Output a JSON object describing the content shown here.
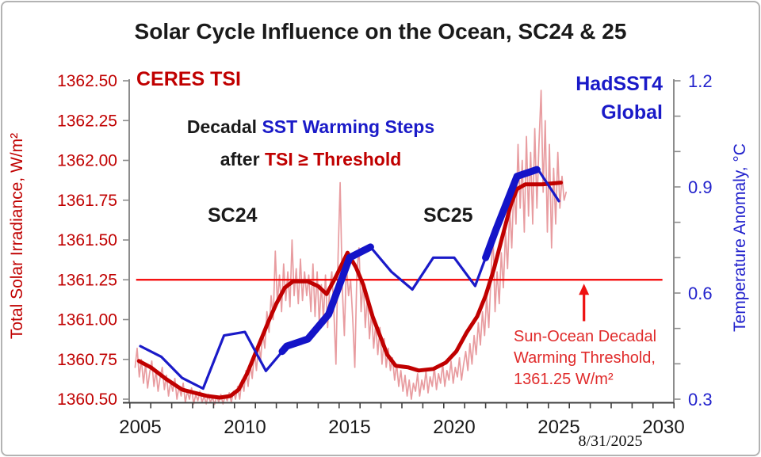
{
  "title": "Solar Cycle Influence on the Ocean, SC24 & 25",
  "labels": {
    "ceres": "CERES TSI",
    "hadsst_line1": "HadSST4",
    "hadsst_line2": "Global",
    "decadal_black": "Decadal ",
    "decadal_blue": "SST Warming Steps",
    "after_black": "after ",
    "after_red": "TSI ≥ Threshold",
    "sc24": "SC24",
    "sc25": "SC25",
    "threshold_note_line1": "Sun-Ocean Decadal",
    "threshold_note_line2": "Warming Threshold,",
    "threshold_note_line3": "1361.25 W/m²",
    "date_stamp": "8/31/2025"
  },
  "colors": {
    "tsi_monthly": "#e89ca0",
    "tsi_smooth": "#c00000",
    "sst": "#1a1ac8",
    "sst_step": "#1414c8",
    "threshold": "#f40000",
    "arrow": "#ee1111",
    "left_axis_text": "#c00000",
    "right_axis_text": "#2222cc",
    "x_axis_text": "#1a1a1a",
    "axis_line_gray": "#8c8c8c",
    "axis_line_bottom": "#3f3f3f"
  },
  "chart_data": {
    "type": "line",
    "title": "Solar Cycle Influence on the Ocean, SC24 & 25",
    "x_axis": {
      "min": 2005,
      "max": 2030,
      "minor_tick_years": 1,
      "labels": [
        2005,
        2010,
        2015,
        2020,
        2025,
        2030
      ]
    },
    "left_axis": {
      "label": "Total Solar Irradiance, W/m²",
      "min": 1360.5,
      "max": 1362.5,
      "tick_step": 0.25
    },
    "right_axis": {
      "label": "Temperature Anomaly, °C",
      "min": 0.3,
      "max": 1.2,
      "minor_tick_step": 0.1,
      "labeled_ticks": [
        1.2,
        0.9,
        0.6,
        0.3
      ]
    },
    "threshold_line": {
      "name": "Sun-Ocean Decadal Warming Threshold",
      "axis": "left",
      "value": 1361.25,
      "from_year": 2004.8,
      "to_year": 2029.95
    },
    "arrow": {
      "year": 2026.2,
      "from_value": 1360.99,
      "to_value": 1361.23
    },
    "series": [
      {
        "name": "CERES TSI monthly",
        "axis": "left",
        "width": 1.7,
        "color_key": "tsi_monthly",
        "t0": 2004.75,
        "dt": 0.1,
        "values": [
          1360.7,
          1360.82,
          1360.64,
          1360.75,
          1360.6,
          1360.72,
          1360.57,
          1360.67,
          1360.74,
          1360.58,
          1360.68,
          1360.55,
          1360.64,
          1360.7,
          1360.56,
          1360.65,
          1360.52,
          1360.61,
          1360.55,
          1360.63,
          1360.5,
          1360.58,
          1360.52,
          1360.6,
          1360.48,
          1360.55,
          1360.5,
          1360.57,
          1360.47,
          1360.53,
          1360.49,
          1360.55,
          1360.48,
          1360.52,
          1360.47,
          1360.53,
          1360.48,
          1360.51,
          1360.46,
          1360.52,
          1360.48,
          1360.53,
          1360.47,
          1360.52,
          1360.49,
          1360.54,
          1360.48,
          1360.55,
          1360.5,
          1360.58,
          1360.5,
          1360.62,
          1360.55,
          1360.68,
          1360.58,
          1360.72,
          1360.63,
          1360.8,
          1360.68,
          1360.85,
          1360.75,
          1360.92,
          1360.82,
          1361.05,
          1360.92,
          1361.15,
          1361.0,
          1361.43,
          1361.1,
          1361.28,
          1361.05,
          1361.35,
          1361.12,
          1361.3,
          1361.08,
          1361.5,
          1361.15,
          1361.32,
          1361.1,
          1361.38,
          1361.12,
          1361.3,
          1361.15,
          1361.28,
          1361.05,
          1361.35,
          1361.02,
          1361.3,
          1360.98,
          1361.22,
          1361.0,
          1361.28,
          1360.95,
          1361.2,
          1361.3,
          1361.05,
          1360.72,
          1361.4,
          1361.86,
          1361.2,
          1360.9,
          1361.35,
          1361.15,
          1361.25,
          1361.0,
          1360.7,
          1361.3,
          1361.45,
          1361.05,
          1361.25,
          1360.95,
          1361.15,
          1360.88,
          1361.05,
          1360.82,
          1360.98,
          1360.78,
          1360.95,
          1360.72,
          1360.88,
          1360.7,
          1360.82,
          1360.68,
          1360.76,
          1360.62,
          1360.72,
          1360.58,
          1360.68,
          1360.55,
          1360.65,
          1360.52,
          1360.62,
          1360.5,
          1360.6,
          1360.55,
          1360.66,
          1360.52,
          1360.62,
          1360.56,
          1360.68,
          1360.54,
          1360.64,
          1360.58,
          1360.7,
          1360.56,
          1360.66,
          1360.6,
          1360.72,
          1360.58,
          1360.68,
          1360.62,
          1360.74,
          1360.6,
          1360.7,
          1360.64,
          1360.76,
          1360.62,
          1360.72,
          1360.8,
          1360.68,
          1360.85,
          1360.72,
          1360.9,
          1360.78,
          1360.98,
          1360.84,
          1361.05,
          1360.9,
          1361.15,
          1360.95,
          1361.25,
          1361.56,
          1361.05,
          1361.3,
          1361.1,
          1361.42,
          1361.2,
          1361.55,
          1361.32,
          1361.7,
          1361.45,
          1361.85,
          1361.6,
          1362.1,
          1361.7,
          1362.0,
          1361.55,
          1362.15,
          1361.65,
          1362.05,
          1361.6,
          1362.2,
          1361.7,
          1362.1,
          1362.44,
          1361.8,
          1362.25,
          1361.55,
          1362.1,
          1361.45,
          1361.95,
          1361.6,
          1362.05,
          1361.7,
          1361.9,
          1361.75,
          1361.8
        ]
      },
      {
        "name": "CERES TSI smoothed",
        "axis": "left",
        "width": 5,
        "color_key": "tsi_smooth",
        "points": [
          [
            2004.93,
            1360.74
          ],
          [
            2005.5,
            1360.7
          ],
          [
            2006.2,
            1360.63
          ],
          [
            2007,
            1360.56
          ],
          [
            2007.6,
            1360.54
          ],
          [
            2008.2,
            1360.52
          ],
          [
            2008.8,
            1360.51
          ],
          [
            2009.3,
            1360.52
          ],
          [
            2009.7,
            1360.56
          ],
          [
            2010.1,
            1360.66
          ],
          [
            2010.6,
            1360.82
          ],
          [
            2011.1,
            1360.98
          ],
          [
            2011.5,
            1361.1
          ],
          [
            2011.9,
            1361.2
          ],
          [
            2012.3,
            1361.24
          ],
          [
            2013,
            1361.24
          ],
          [
            2013.5,
            1361.21
          ],
          [
            2013.9,
            1361.16
          ],
          [
            2014.35,
            1361.27
          ],
          [
            2014.9,
            1361.42
          ],
          [
            2015.3,
            1361.33
          ],
          [
            2015.65,
            1361.22
          ],
          [
            2016.1,
            1361.02
          ],
          [
            2016.8,
            1360.78
          ],
          [
            2017.2,
            1360.71
          ],
          [
            2017.8,
            1360.7
          ],
          [
            2018.3,
            1360.68
          ],
          [
            2019,
            1360.69
          ],
          [
            2019.6,
            1360.73
          ],
          [
            2020.1,
            1360.8
          ],
          [
            2020.6,
            1360.92
          ],
          [
            2021.1,
            1361.02
          ],
          [
            2021.5,
            1361.15
          ],
          [
            2021.9,
            1361.32
          ],
          [
            2022.3,
            1361.52
          ],
          [
            2022.7,
            1361.72
          ],
          [
            2023,
            1361.82
          ],
          [
            2023.4,
            1361.85
          ],
          [
            2024.2,
            1361.85
          ],
          [
            2025.1,
            1361.86
          ]
        ]
      },
      {
        "name": "HadSST4 Global annual",
        "axis": "right",
        "width": 3.2,
        "color_key": "sst",
        "points": [
          [
            2005,
            0.45
          ],
          [
            2006,
            0.42
          ],
          [
            2007,
            0.36
          ],
          [
            2008,
            0.33
          ],
          [
            2009,
            0.48
          ],
          [
            2010,
            0.49
          ],
          [
            2011,
            0.38
          ],
          [
            2012,
            0.45
          ],
          [
            2013,
            0.47
          ],
          [
            2014,
            0.54
          ],
          [
            2015,
            0.7
          ],
          [
            2016,
            0.73
          ],
          [
            2017,
            0.66
          ],
          [
            2018,
            0.61
          ],
          [
            2019,
            0.7
          ],
          [
            2020,
            0.7
          ],
          [
            2021,
            0.62
          ],
          [
            2022,
            0.78
          ],
          [
            2023,
            0.93
          ],
          [
            2024,
            0.95
          ],
          [
            2025,
            0.86
          ]
        ]
      },
      {
        "name": "Decadal SST warming step SC24",
        "axis": "right",
        "width": 9,
        "color_key": "sst_step",
        "points": [
          [
            2011.78,
            0.435
          ],
          [
            2012,
            0.45
          ],
          [
            2013,
            0.47
          ],
          [
            2014,
            0.54
          ],
          [
            2015,
            0.7
          ],
          [
            2016,
            0.73
          ]
        ]
      },
      {
        "name": "Decadal SST warming step SC25",
        "axis": "right",
        "width": 9,
        "color_key": "sst_step",
        "points": [
          [
            2021.5,
            0.7
          ],
          [
            2022,
            0.78
          ],
          [
            2023,
            0.93
          ],
          [
            2023.95,
            0.949
          ]
        ]
      }
    ]
  }
}
